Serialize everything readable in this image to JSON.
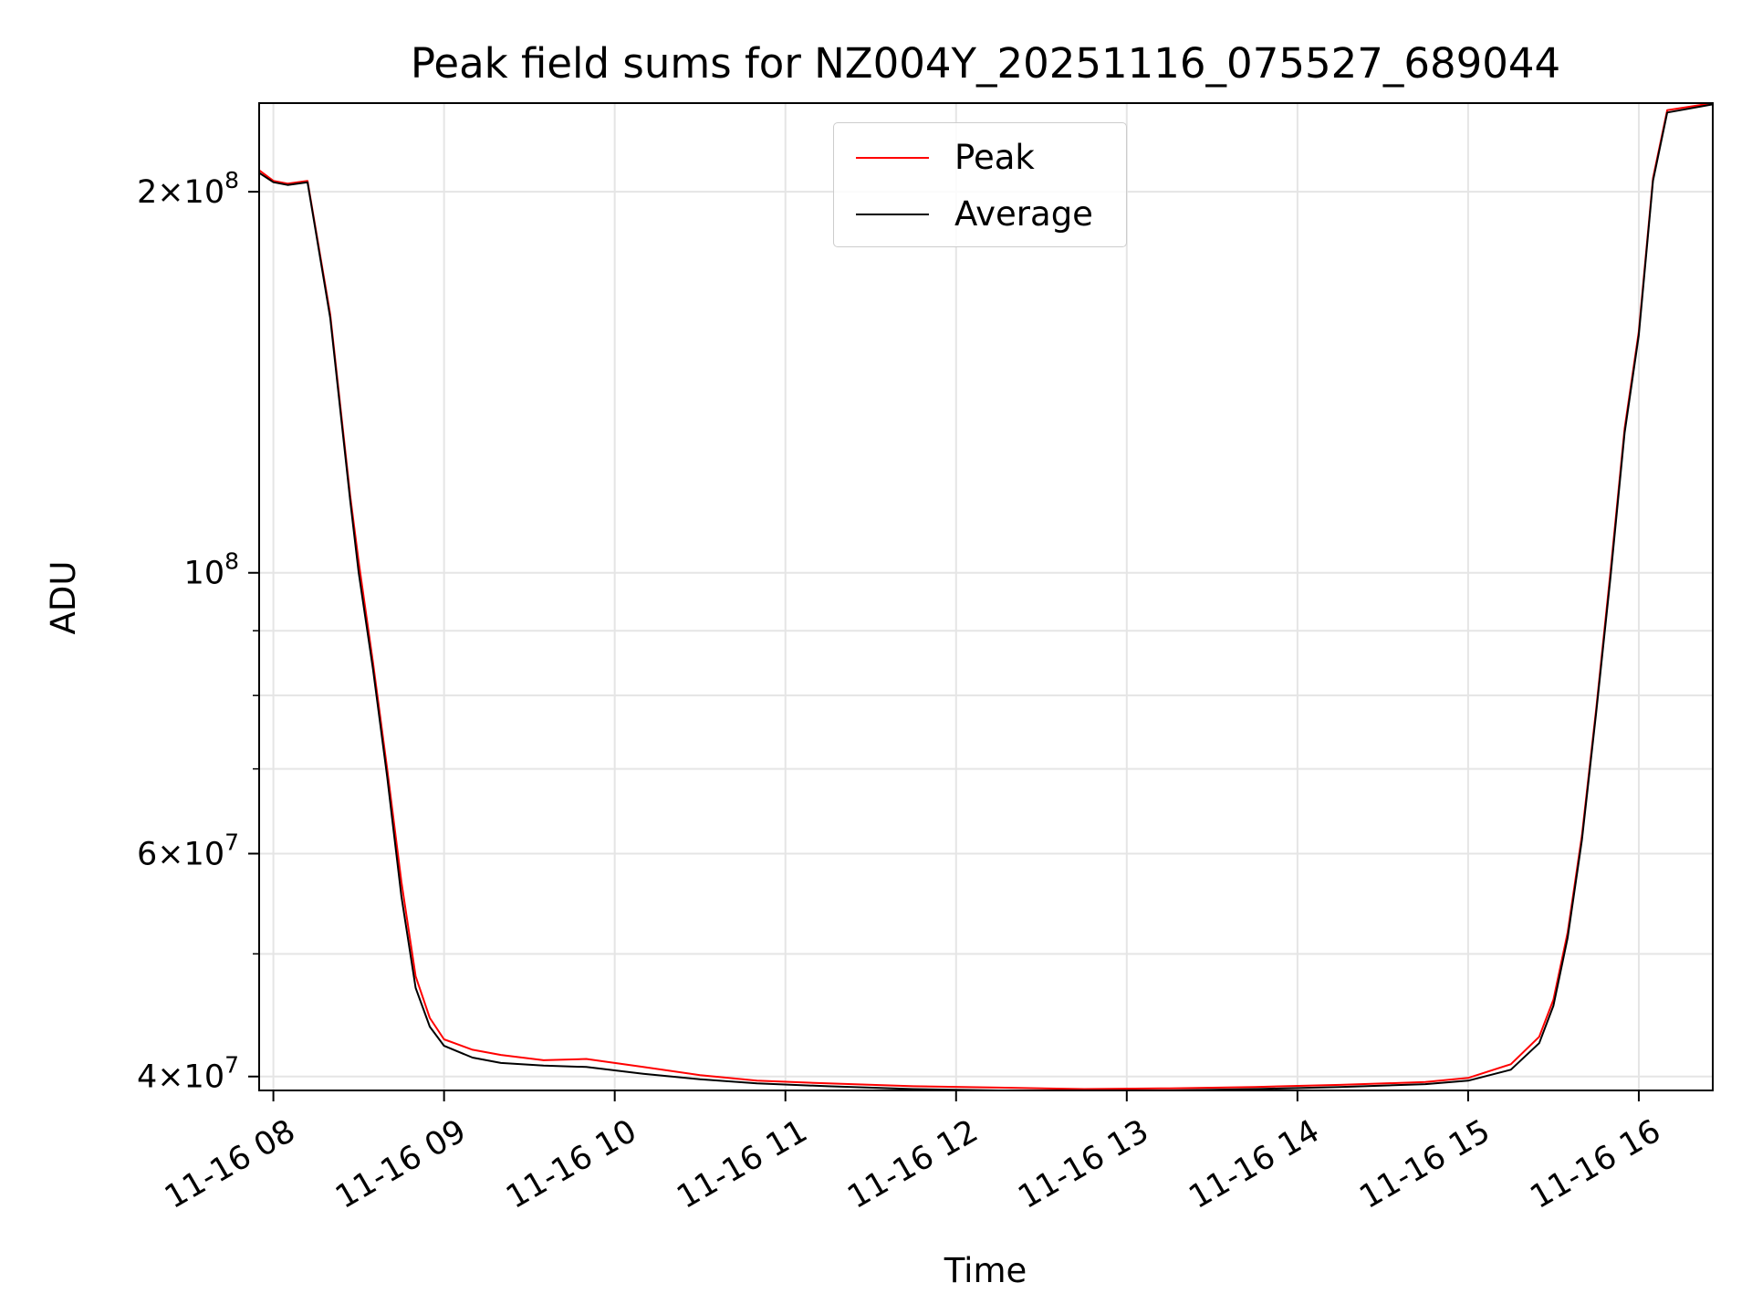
{
  "chart_data": {
    "type": "line",
    "title": "Peak field sums for NZ004Y_20251116_075527_689044",
    "xlabel": "Time",
    "ylabel": "ADU",
    "y_scale": "log",
    "grid": true,
    "legend_position": "upper center",
    "xlim": [
      "2025-11-16 07:55",
      "2025-11-16 16:26"
    ],
    "ylim": [
      39000000,
      235000000
    ],
    "x_ticks": [
      {
        "value": "2025-11-16 08:00",
        "label": "11-16 08"
      },
      {
        "value": "2025-11-16 09:00",
        "label": "11-16 09"
      },
      {
        "value": "2025-11-16 10:00",
        "label": "11-16 10"
      },
      {
        "value": "2025-11-16 11:00",
        "label": "11-16 11"
      },
      {
        "value": "2025-11-16 12:00",
        "label": "11-16 12"
      },
      {
        "value": "2025-11-16 13:00",
        "label": "11-16 13"
      },
      {
        "value": "2025-11-16 14:00",
        "label": "11-16 14"
      },
      {
        "value": "2025-11-16 15:00",
        "label": "11-16 15"
      },
      {
        "value": "2025-11-16 16:00",
        "label": "11-16 16"
      }
    ],
    "y_ticks": [
      {
        "value": 40000000,
        "mantissa": "4",
        "exponent": "7"
      },
      {
        "value": 60000000,
        "mantissa": "6",
        "exponent": "7"
      },
      {
        "value": 100000000,
        "mantissa": "",
        "exponent": "8"
      },
      {
        "value": 200000000,
        "mantissa": "2",
        "exponent": "8"
      }
    ],
    "y_minor_ticks": [
      50000000,
      70000000,
      80000000,
      90000000
    ],
    "colors": {
      "peak": "#ff0000",
      "average": "#000000",
      "grid": "#e5e5e5"
    },
    "series": [
      {
        "name": "Peak",
        "color": "#ff0000",
        "x": [
          "2025-11-16 07:55",
          "2025-11-16 08:00",
          "2025-11-16 08:05",
          "2025-11-16 08:12",
          "2025-11-16 08:20",
          "2025-11-16 08:27",
          "2025-11-16 08:30",
          "2025-11-16 08:35",
          "2025-11-16 08:40",
          "2025-11-16 08:45",
          "2025-11-16 08:50",
          "2025-11-16 08:55",
          "2025-11-16 09:00",
          "2025-11-16 09:10",
          "2025-11-16 09:20",
          "2025-11-16 09:35",
          "2025-11-16 09:50",
          "2025-11-16 10:10",
          "2025-11-16 10:30",
          "2025-11-16 10:50",
          "2025-11-16 11:15",
          "2025-11-16 11:45",
          "2025-11-16 12:15",
          "2025-11-16 12:45",
          "2025-11-16 13:15",
          "2025-11-16 13:45",
          "2025-11-16 14:15",
          "2025-11-16 14:45",
          "2025-11-16 15:00",
          "2025-11-16 15:15",
          "2025-11-16 15:25",
          "2025-11-16 15:30",
          "2025-11-16 15:35",
          "2025-11-16 15:40",
          "2025-11-16 15:45",
          "2025-11-16 15:50",
          "2025-11-16 15:55",
          "2025-11-16 16:00",
          "2025-11-16 16:05",
          "2025-11-16 16:10",
          "2025-11-16 16:26"
        ],
        "values": [
          208000000,
          204000000,
          203000000,
          204000000,
          160000000,
          115000000,
          102000000,
          85000000,
          70000000,
          57000000,
          48000000,
          44500000,
          42800000,
          42000000,
          41600000,
          41200000,
          41300000,
          40700000,
          40100000,
          39700000,
          39500000,
          39300000,
          39200000,
          39100000,
          39150000,
          39250000,
          39400000,
          39600000,
          39900000,
          40900000,
          43000000,
          46000000,
          52000000,
          62000000,
          78000000,
          100000000,
          130000000,
          155000000,
          205000000,
          232000000,
          235000000
        ]
      },
      {
        "name": "Average",
        "color": "#000000",
        "x": [
          "2025-11-16 07:55",
          "2025-11-16 08:00",
          "2025-11-16 08:05",
          "2025-11-16 08:12",
          "2025-11-16 08:20",
          "2025-11-16 08:27",
          "2025-11-16 08:30",
          "2025-11-16 08:35",
          "2025-11-16 08:40",
          "2025-11-16 08:45",
          "2025-11-16 08:50",
          "2025-11-16 08:55",
          "2025-11-16 09:00",
          "2025-11-16 09:10",
          "2025-11-16 09:20",
          "2025-11-16 09:35",
          "2025-11-16 09:50",
          "2025-11-16 10:10",
          "2025-11-16 10:30",
          "2025-11-16 10:50",
          "2025-11-16 11:15",
          "2025-11-16 11:45",
          "2025-11-16 12:15",
          "2025-11-16 12:45",
          "2025-11-16 13:15",
          "2025-11-16 13:45",
          "2025-11-16 14:15",
          "2025-11-16 14:45",
          "2025-11-16 15:00",
          "2025-11-16 15:15",
          "2025-11-16 15:25",
          "2025-11-16 15:30",
          "2025-11-16 15:35",
          "2025-11-16 15:40",
          "2025-11-16 15:45",
          "2025-11-16 15:50",
          "2025-11-16 15:55",
          "2025-11-16 16:00",
          "2025-11-16 16:05",
          "2025-11-16 16:10",
          "2025-11-16 16:26"
        ],
        "values": [
          207000000,
          203500000,
          202500000,
          203500000,
          159000000,
          114000000,
          100000000,
          84000000,
          69000000,
          55500000,
          47000000,
          43800000,
          42300000,
          41400000,
          41000000,
          40800000,
          40700000,
          40200000,
          39800000,
          39500000,
          39300000,
          39100000,
          39000000,
          38950000,
          39000000,
          39100000,
          39250000,
          39450000,
          39700000,
          40500000,
          42500000,
          45500000,
          51500000,
          61500000,
          77500000,
          99000000,
          129000000,
          154000000,
          204000000,
          231000000,
          234500000
        ]
      }
    ]
  }
}
